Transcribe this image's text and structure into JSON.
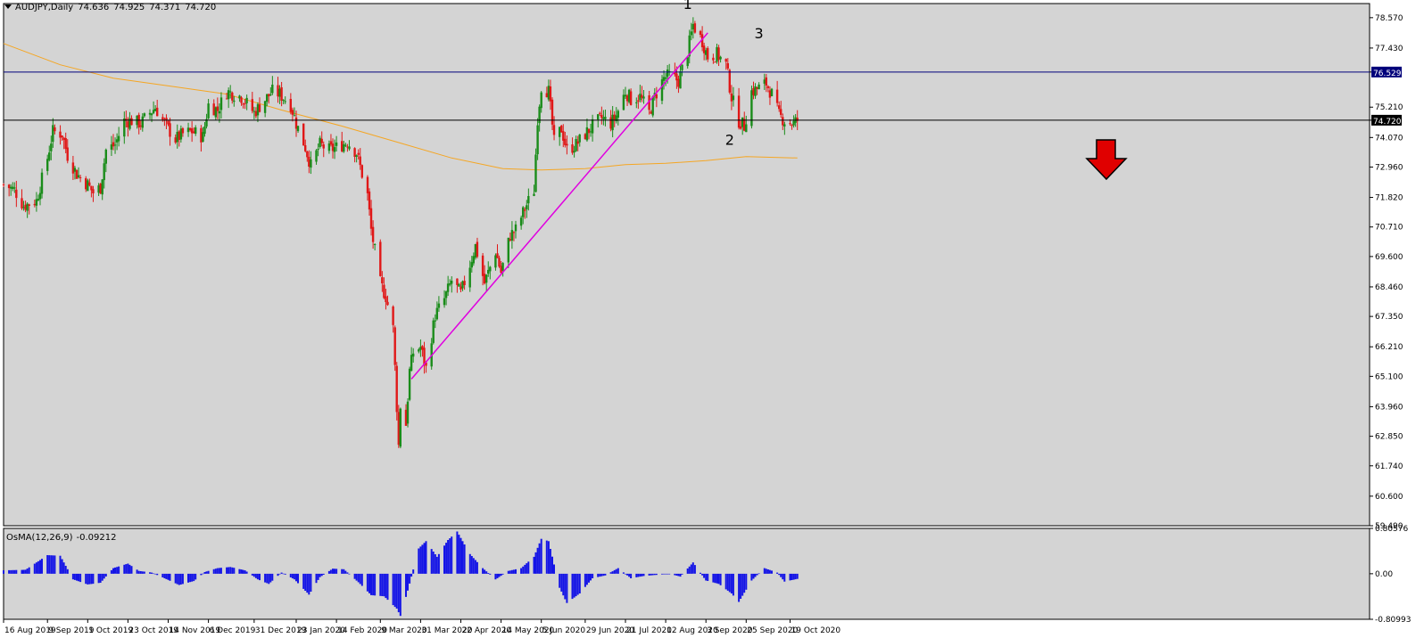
{
  "header": {
    "symbol": "AUDJPY,Daily",
    "open": "74.636",
    "high": "74.925",
    "low": "74.371",
    "close": "74.720"
  },
  "osma_header": {
    "name": "OsMA(12,26,9)",
    "value": "-0.09212"
  },
  "colors": {
    "background": "#d4d4d4",
    "bull_candle": "#1a8c1a",
    "bear_candle": "#e01818",
    "ma_line": "#f5a623",
    "trendline": "#e000e0",
    "resistance_line": "#00007a",
    "price_line": "#000000",
    "histogram": "#1414e6",
    "arrow": "#e00000"
  },
  "annotations": [
    {
      "label": "1",
      "date": "2020-08-24",
      "price": 78.9
    },
    {
      "label": "2",
      "date": "2020-09-16",
      "price": 73.8
    },
    {
      "label": "3",
      "date": "2020-10-02",
      "price": 77.8
    }
  ],
  "chart_data": [
    {
      "type": "candlestick",
      "symbol": "AUDJPY",
      "timeframe": "Daily",
      "ylim": [
        59.49,
        79.1
      ],
      "y_ticks": [
        "78.570",
        "77.430",
        "76.529",
        "75.210",
        "74.720",
        "74.070",
        "72.960",
        "71.820",
        "70.710",
        "69.600",
        "68.460",
        "67.350",
        "66.210",
        "65.100",
        "63.960",
        "62.850",
        "61.740",
        "60.600",
        "59.490"
      ],
      "x_ticks": [
        "16 Aug 2019",
        "9 Sep 2019",
        "1 Oct 2019",
        "23 Oct 2019",
        "14 Nov 2019",
        "6 Dec 2019",
        "31 Dec 2019",
        "23 Jan 2020",
        "14 Feb 2020",
        "9 Mar 2020",
        "31 Mar 2020",
        "22 Apr 2020",
        "14 May 2020",
        "5 Jun 2020",
        "29 Jun 2020",
        "21 Jul 2020",
        "12 Aug 2020",
        "3 Sep 2020",
        "25 Sep 2020",
        "19 Oct 2020"
      ],
      "close_path": [
        [
          "2019-08-16",
          72.3
        ],
        [
          "2019-08-22",
          72.1
        ],
        [
          "2019-08-27",
          71.5
        ],
        [
          "2019-09-03",
          71.7
        ],
        [
          "2019-09-09",
          73.3
        ],
        [
          "2019-09-12",
          74.3
        ],
        [
          "2019-09-17",
          74.2
        ],
        [
          "2019-09-20",
          73.4
        ],
        [
          "2019-09-25",
          72.7
        ],
        [
          "2019-10-01",
          72.3
        ],
        [
          "2019-10-04",
          72.0
        ],
        [
          "2019-10-08",
          72.2
        ],
        [
          "2019-10-11",
          73.6
        ],
        [
          "2019-10-16",
          73.8
        ],
        [
          "2019-10-21",
          74.7
        ],
        [
          "2019-10-25",
          74.7
        ],
        [
          "2019-10-30",
          74.6
        ],
        [
          "2019-11-04",
          75.0
        ],
        [
          "2019-11-07",
          75.2
        ],
        [
          "2019-11-12",
          74.6
        ],
        [
          "2019-11-18",
          74.0
        ],
        [
          "2019-11-22",
          74.2
        ],
        [
          "2019-11-27",
          74.3
        ],
        [
          "2019-12-03",
          74.1
        ],
        [
          "2019-12-06",
          75.3
        ],
        [
          "2019-12-11",
          75.1
        ],
        [
          "2019-12-16",
          75.8
        ],
        [
          "2019-12-20",
          75.7
        ],
        [
          "2019-12-24",
          75.6
        ],
        [
          "2019-12-31",
          75.0
        ],
        [
          "2020-01-06",
          75.5
        ],
        [
          "2020-01-10",
          75.8
        ],
        [
          "2020-01-14",
          75.7
        ],
        [
          "2020-01-20",
          75.3
        ],
        [
          "2020-01-23",
          74.6
        ],
        [
          "2020-01-28",
          73.7
        ],
        [
          "2020-01-31",
          73.0
        ],
        [
          "2020-02-05",
          73.8
        ],
        [
          "2020-02-10",
          73.6
        ],
        [
          "2020-02-14",
          73.7
        ],
        [
          "2020-02-20",
          73.9
        ],
        [
          "2020-02-25",
          73.5
        ],
        [
          "2020-03-02",
          71.9
        ],
        [
          "2020-03-04",
          70.6
        ],
        [
          "2020-03-09",
          68.6
        ],
        [
          "2020-03-12",
          68.1
        ],
        [
          "2020-03-16",
          66.9
        ],
        [
          "2020-03-19",
          62.5
        ],
        [
          "2020-03-20",
          64.0
        ],
        [
          "2020-03-23",
          63.3
        ],
        [
          "2020-03-25",
          65.3
        ],
        [
          "2020-03-27",
          66.0
        ],
        [
          "2020-03-31",
          66.2
        ],
        [
          "2020-04-03",
          65.4
        ],
        [
          "2020-04-08",
          67.4
        ],
        [
          "2020-04-13",
          68.0
        ],
        [
          "2020-04-17",
          68.7
        ],
        [
          "2020-04-22",
          68.2
        ],
        [
          "2020-04-27",
          69.3
        ],
        [
          "2020-04-30",
          70.0
        ],
        [
          "2020-05-05",
          68.6
        ],
        [
          "2020-05-11",
          69.8
        ],
        [
          "2020-05-14",
          69.0
        ],
        [
          "2020-05-19",
          70.4
        ],
        [
          "2020-05-22",
          70.6
        ],
        [
          "2020-05-27",
          71.4
        ],
        [
          "2020-06-01",
          72.1
        ],
        [
          "2020-06-03",
          74.8
        ],
        [
          "2020-06-05",
          76.0
        ],
        [
          "2020-06-09",
          75.8
        ],
        [
          "2020-06-12",
          73.9
        ],
        [
          "2020-06-16",
          74.4
        ],
        [
          "2020-06-19",
          73.6
        ],
        [
          "2020-06-24",
          73.8
        ],
        [
          "2020-06-29",
          74.2
        ],
        [
          "2020-07-03",
          74.5
        ],
        [
          "2020-07-08",
          74.8
        ],
        [
          "2020-07-13",
          74.6
        ],
        [
          "2020-07-16",
          74.9
        ],
        [
          "2020-07-21",
          75.8
        ],
        [
          "2020-07-24",
          75.5
        ],
        [
          "2020-07-29",
          75.6
        ],
        [
          "2020-08-03",
          75.0
        ],
        [
          "2020-08-06",
          75.6
        ],
        [
          "2020-08-11",
          76.3
        ],
        [
          "2020-08-14",
          76.4
        ],
        [
          "2020-08-19",
          76.2
        ],
        [
          "2020-08-24",
          77.3
        ],
        [
          "2020-08-27",
          78.3
        ],
        [
          "2020-09-01",
          77.7
        ],
        [
          "2020-09-04",
          77.1
        ],
        [
          "2020-09-09",
          77.2
        ],
        [
          "2020-09-14",
          76.8
        ],
        [
          "2020-09-17",
          75.6
        ],
        [
          "2020-09-21",
          74.7
        ],
        [
          "2020-09-24",
          74.5
        ],
        [
          "2020-09-28",
          75.8
        ],
        [
          "2020-10-01",
          75.9
        ],
        [
          "2020-10-06",
          76.1
        ],
        [
          "2020-10-09",
          75.7
        ],
        [
          "2020-10-13",
          74.9
        ],
        [
          "2020-10-16",
          74.7
        ],
        [
          "2020-10-21",
          74.6
        ],
        [
          "2020-10-23",
          74.72
        ]
      ],
      "moving_average": [
        [
          "2019-08-16",
          77.6
        ],
        [
          "2019-09-16",
          76.8
        ],
        [
          "2019-10-15",
          76.3
        ],
        [
          "2019-11-15",
          76.0
        ],
        [
          "2019-12-16",
          75.7
        ],
        [
          "2020-01-15",
          75.1
        ],
        [
          "2020-02-17",
          74.5
        ],
        [
          "2020-03-18",
          73.9
        ],
        [
          "2020-04-17",
          73.3
        ],
        [
          "2020-05-15",
          72.9
        ],
        [
          "2020-06-05",
          72.85
        ],
        [
          "2020-06-29",
          72.9
        ],
        [
          "2020-07-21",
          73.05
        ],
        [
          "2020-08-12",
          73.1
        ],
        [
          "2020-09-03",
          73.2
        ],
        [
          "2020-09-25",
          73.35
        ],
        [
          "2020-10-23",
          73.3
        ]
      ],
      "horizontal_lines": [
        {
          "name": "resistance",
          "value": 76.529
        },
        {
          "name": "current-price",
          "value": 74.72
        }
      ],
      "trendline": [
        [
          "2020-03-26",
          65.0
        ],
        [
          "2020-09-04",
          78.0
        ]
      ]
    },
    {
      "type": "histogram",
      "name": "OsMA(12,26,9)",
      "ylim": [
        -0.80993,
        0.80576
      ],
      "y_ticks": [
        "0.80576",
        "0.00",
        "-0.80993"
      ],
      "last_value": -0.09212,
      "values_path": [
        [
          "2019-08-16",
          0.06
        ],
        [
          "2019-08-28",
          0.07
        ],
        [
          "2019-09-09",
          0.33
        ],
        [
          "2019-09-16",
          0.32
        ],
        [
          "2019-09-23",
          -0.1
        ],
        [
          "2019-10-01",
          -0.19
        ],
        [
          "2019-10-08",
          -0.16
        ],
        [
          "2019-10-15",
          0.1
        ],
        [
          "2019-10-23",
          0.18
        ],
        [
          "2019-10-29",
          0.05
        ],
        [
          "2019-11-05",
          0.02
        ],
        [
          "2019-11-12",
          -0.08
        ],
        [
          "2019-11-20",
          -0.2
        ],
        [
          "2019-11-28",
          -0.13
        ],
        [
          "2019-12-04",
          0.03
        ],
        [
          "2019-12-11",
          0.1
        ],
        [
          "2019-12-18",
          0.12
        ],
        [
          "2019-12-26",
          0.06
        ],
        [
          "2020-01-02",
          -0.1
        ],
        [
          "2020-01-08",
          -0.18
        ],
        [
          "2020-01-15",
          0.02
        ],
        [
          "2020-01-22",
          -0.1
        ],
        [
          "2020-01-30",
          -0.37
        ],
        [
          "2020-02-05",
          -0.06
        ],
        [
          "2020-02-12",
          0.09
        ],
        [
          "2020-02-18",
          0.08
        ],
        [
          "2020-02-26",
          -0.15
        ],
        [
          "2020-03-04",
          -0.38
        ],
        [
          "2020-03-11",
          -0.4
        ],
        [
          "2020-03-18",
          -0.62
        ],
        [
          "2020-03-20",
          -0.75
        ],
        [
          "2020-03-24",
          -0.3
        ],
        [
          "2020-03-30",
          0.45
        ],
        [
          "2020-04-03",
          0.58
        ],
        [
          "2020-04-09",
          0.3
        ],
        [
          "2020-04-15",
          0.6
        ],
        [
          "2020-04-20",
          0.75
        ],
        [
          "2020-04-27",
          0.35
        ],
        [
          "2020-05-04",
          0.1
        ],
        [
          "2020-05-11",
          -0.1
        ],
        [
          "2020-05-18",
          0.05
        ],
        [
          "2020-05-25",
          0.1
        ],
        [
          "2020-06-01",
          0.3
        ],
        [
          "2020-06-05",
          0.62
        ],
        [
          "2020-06-09",
          0.58
        ],
        [
          "2020-06-15",
          -0.25
        ],
        [
          "2020-06-19",
          -0.52
        ],
        [
          "2020-06-26",
          -0.35
        ],
        [
          "2020-07-03",
          -0.08
        ],
        [
          "2020-07-10",
          -0.03
        ],
        [
          "2020-07-17",
          0.1
        ],
        [
          "2020-07-24",
          -0.08
        ],
        [
          "2020-07-31",
          -0.04
        ],
        [
          "2020-08-07",
          -0.02
        ],
        [
          "2020-08-14",
          0.0
        ],
        [
          "2020-08-20",
          -0.05
        ],
        [
          "2020-08-27",
          0.2
        ],
        [
          "2020-09-03",
          -0.12
        ],
        [
          "2020-09-10",
          -0.18
        ],
        [
          "2020-09-17",
          -0.35
        ],
        [
          "2020-09-21",
          -0.5
        ],
        [
          "2020-09-28",
          -0.12
        ],
        [
          "2020-10-05",
          0.1
        ],
        [
          "2020-10-12",
          0.02
        ],
        [
          "2020-10-16",
          -0.14
        ],
        [
          "2020-10-23",
          -0.09212
        ]
      ]
    }
  ]
}
